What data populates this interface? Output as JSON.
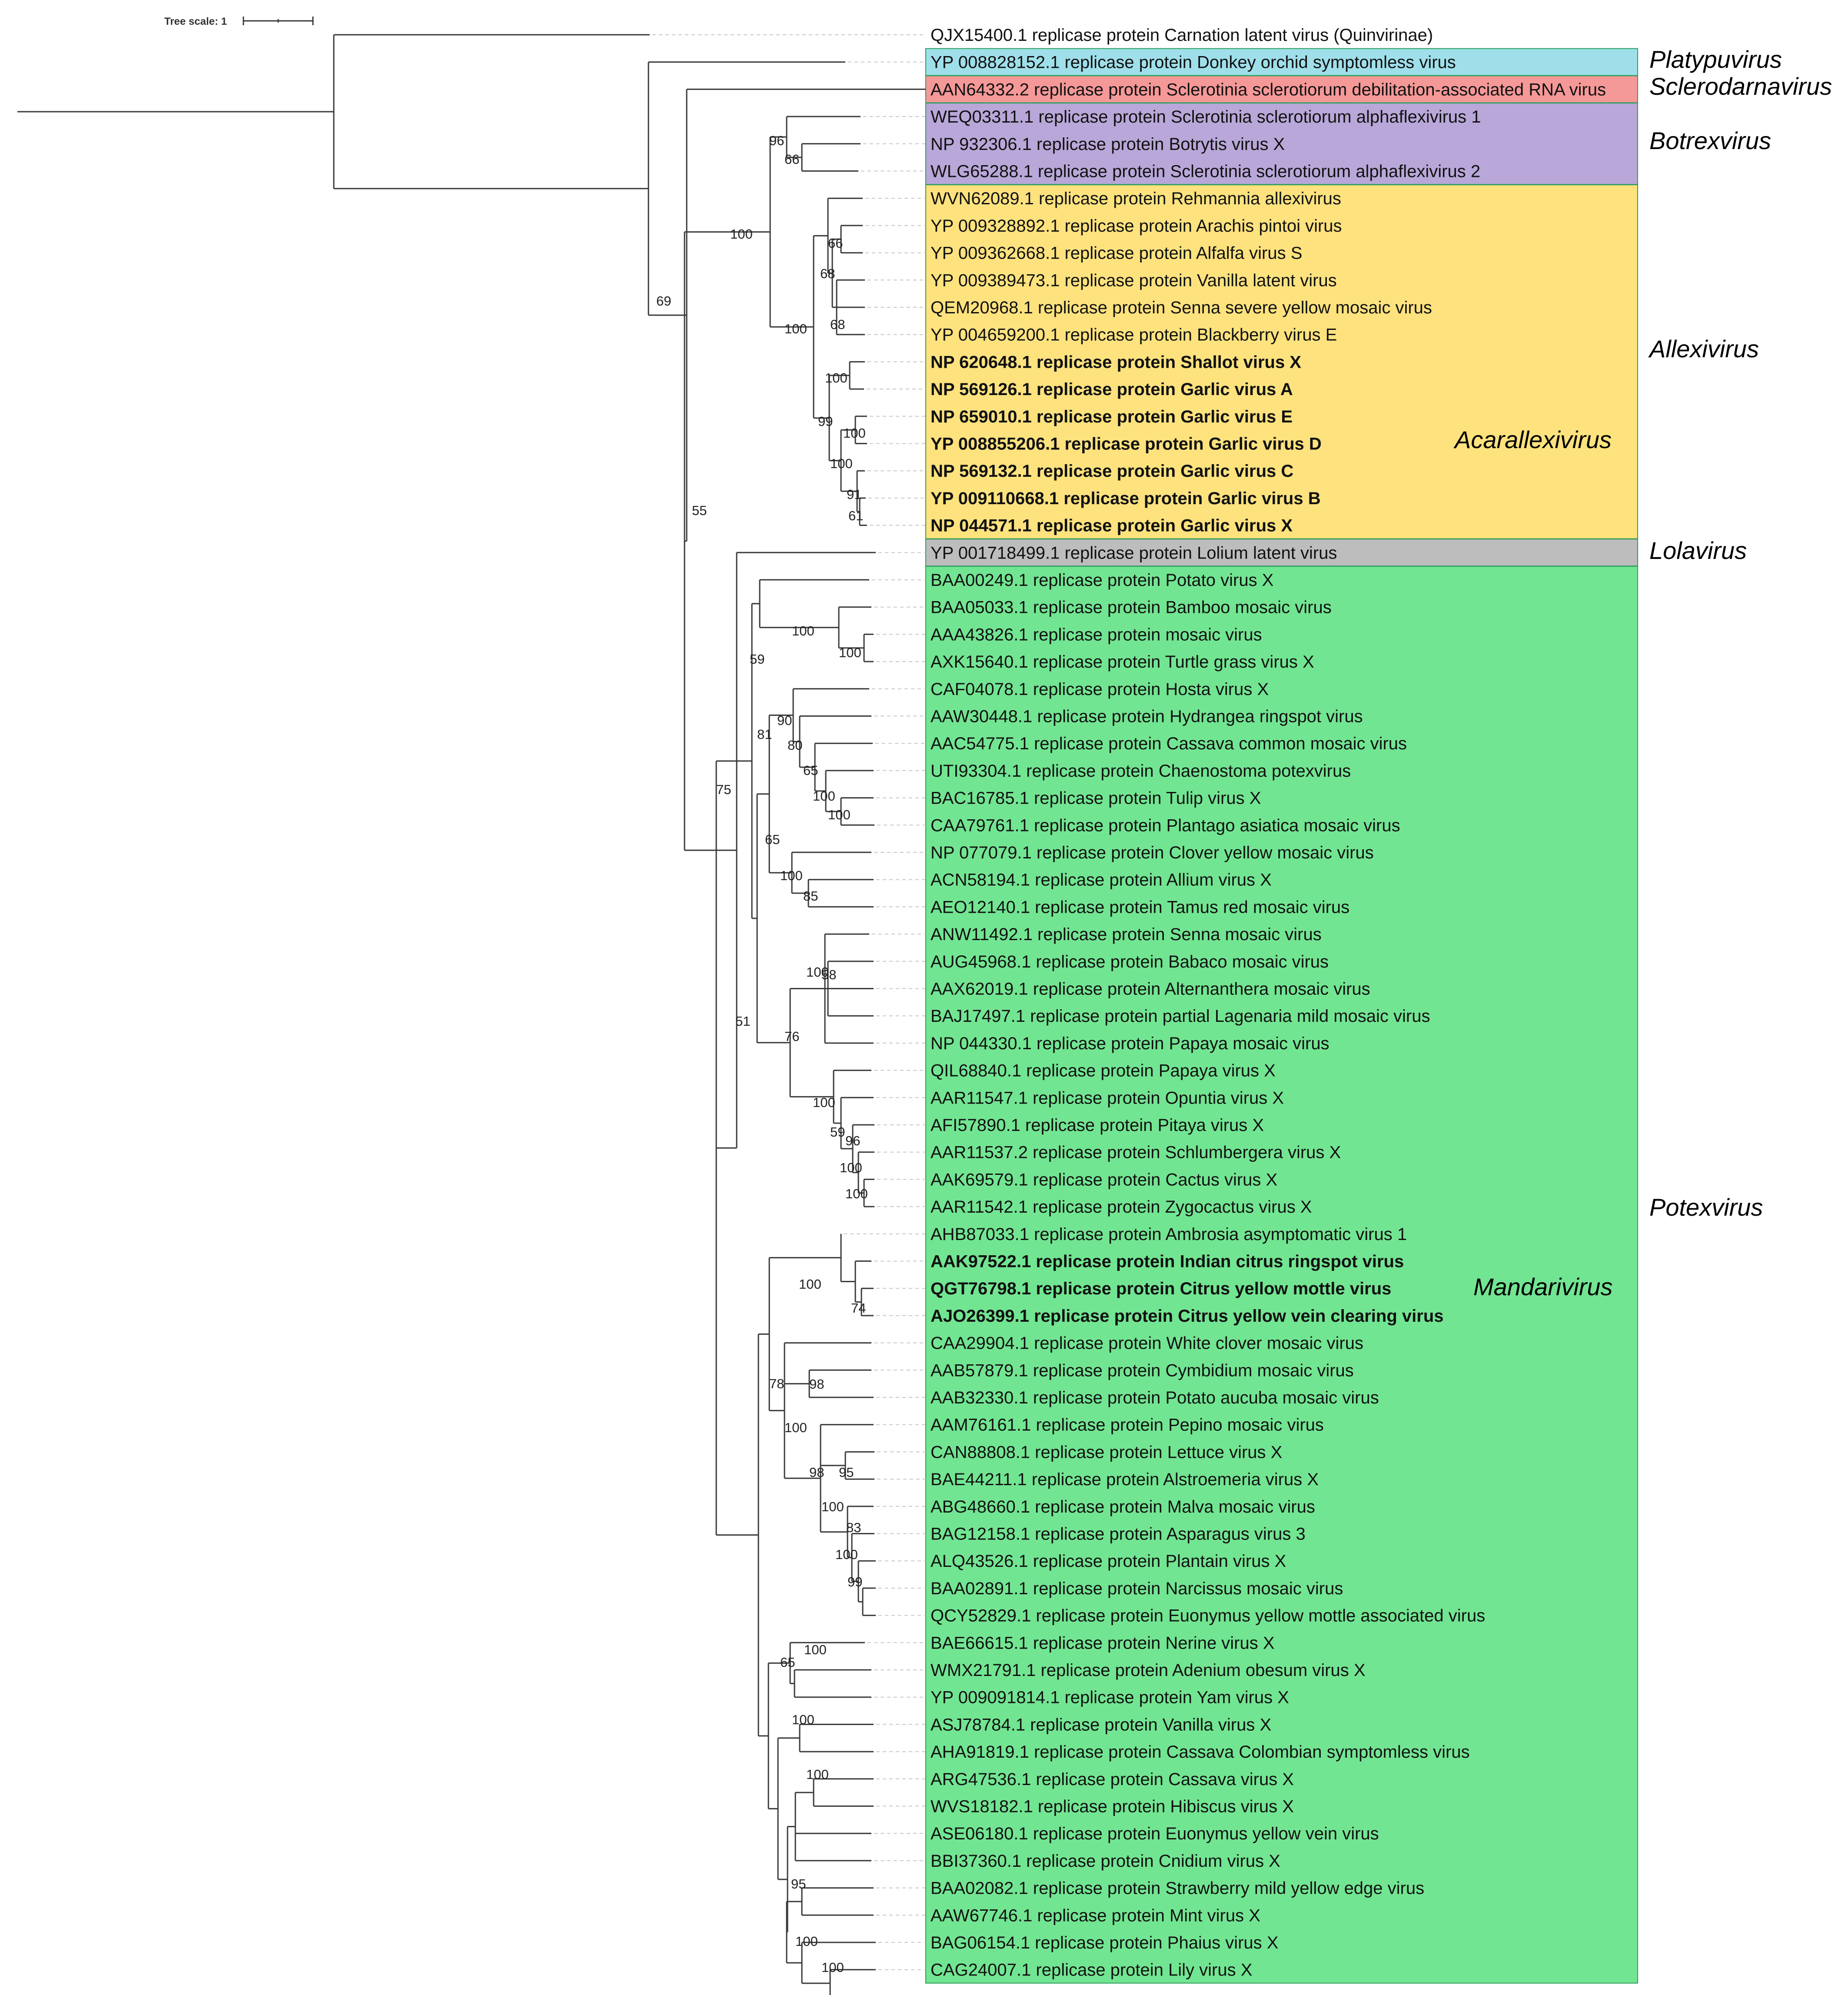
{
  "diagram": {
    "type": "phylogenetic_tree",
    "scale_label": "Tree scale: 1",
    "colors": {
      "Platypuvirus": "#9fdfea",
      "Sclerodarnavirus": "#f59898",
      "Botrexvirus": "#b8a7d8",
      "Allexivirus": "#fde27e",
      "Lolavirus": "#bdbdbd",
      "Potexvirus": "#72e592"
    },
    "genera": [
      "Platypuvirus",
      "Sclerodarnavirus",
      "Botrexvirus",
      "Allexivirus",
      "Acarallexivirus",
      "Lolavirus",
      "Potexvirus",
      "Mandarivirus"
    ],
    "leaves": [
      "QJX15400.1 replicase protein Carnation latent virus (Quinvirinae)",
      "YP 008828152.1 replicase protein Donkey orchid symptomless virus",
      "AAN64332.2 replicase protein Sclerotinia sclerotiorum debilitation-associated RNA virus",
      "WEQ03311.1 replicase protein Sclerotinia sclerotiorum alphaflexivirus 1",
      "NP 932306.1 replicase protein Botrytis virus X",
      "WLG65288.1 replicase protein Sclerotinia sclerotiorum alphaflexivirus 2",
      "WVN62089.1 replicase protein Rehmannia allexivirus",
      "YP 009328892.1 replicase protein Arachis pintoi virus",
      "YP 009362668.1 replicase protein Alfalfa virus S",
      "YP 009389473.1 replicase protein Vanilla latent virus",
      "QEM20968.1 replicase protein Senna severe yellow mosaic virus",
      "YP 004659200.1 replicase protein Blackberry virus E",
      "NP 620648.1 replicase protein Shallot virus X",
      "NP 569126.1 replicase protein Garlic virus A",
      "NP 659010.1 replicase protein Garlic virus E",
      "YP 008855206.1 replicase protein Garlic virus D",
      "NP 569132.1 replicase protein Garlic virus C",
      "YP 009110668.1 replicase protein Garlic virus B",
      "NP 044571.1 replicase protein Garlic virus X",
      "YP 001718499.1 replicase protein Lolium latent virus",
      "BAA00249.1 replicase protein Potato virus X",
      "BAA05033.1 replicase protein Bamboo mosaic virus",
      "AAA43826.1 replicase protein mosaic virus",
      "AXK15640.1 replicase protein Turtle grass virus X",
      "CAF04078.1 replicase protein Hosta virus X",
      "AAW30448.1 replicase protein Hydrangea ringspot virus",
      "AAC54775.1 replicase protein Cassava common mosaic virus",
      "UTI93304.1 replicase protein Chaenostoma potexvirus",
      "BAC16785.1 replicase protein Tulip virus X",
      "CAA79761.1 replicase protein Plantago asiatica mosaic virus",
      "NP 077079.1 replicase protein Clover yellow mosaic virus",
      "ACN58194.1 replicase protein Allium virus X",
      "AEO12140.1 replicase protein Tamus red mosaic virus",
      "ANW11492.1 replicase protein Senna mosaic virus",
      "AUG45968.1 replicase protein Babaco mosaic virus",
      "AAX62019.1 replicase protein Alternanthera mosaic virus",
      "BAJ17497.1 replicase protein partial Lagenaria mild mosaic virus",
      "NP 044330.1 replicase protein Papaya mosaic virus",
      "QIL68840.1 replicase protein Papaya virus X",
      "AAR11547.1 replicase protein Opuntia virus X",
      "AFI57890.1 replicase protein Pitaya virus X",
      "AAR11537.2 replicase protein Schlumbergera virus X",
      "AAK69579.1 replicase protein Cactus virus X",
      "AAR11542.1 replicase protein Zygocactus virus X",
      "AHB87033.1 replicase protein Ambrosia asymptomatic virus 1",
      "AAK97522.1 replicase protein Indian citrus ringspot virus",
      "QGT76798.1 replicase protein Citrus yellow mottle virus",
      "AJO26399.1 replicase protein Citrus yellow vein clearing virus",
      "CAA29904.1 replicase protein White clover mosaic virus",
      "AAB57879.1 replicase protein Cymbidium mosaic virus",
      "AAB32330.1 replicase protein Potato aucuba mosaic virus",
      "AAM76161.1 replicase protein Pepino mosaic virus",
      "CAN88808.1 replicase protein Lettuce virus X",
      "BAE44211.1 replicase protein Alstroemeria virus X",
      "ABG48660.1 replicase protein Malva mosaic virus",
      "BAG12158.1 replicase protein Asparagus virus 3",
      "ALQ43526.1 replicase protein Plantain virus X",
      "BAA02891.1 replicase protein Narcissus mosaic virus",
      "QCY52829.1 replicase protein Euonymus yellow mottle associated virus",
      "BAE66615.1 replicase protein Nerine virus X",
      "WMX21791.1 replicase protein Adenium obesum virus X",
      "YP 009091814.1 replicase protein Yam virus X",
      "ASJ78784.1 replicase protein Vanilla virus X",
      "AHA91819.1 replicase protein Cassava Colombian symptomless virus",
      "ARG47536.1 replicase protein Cassava virus X",
      "WVS18182.1 replicase protein Hibiscus virus X",
      "ASE06180.1 replicase protein Euonymus yellow vein virus",
      "BBI37360.1 replicase protein Cnidium virus X",
      "BAA02082.1 replicase protein Strawberry mild yellow edge virus",
      "AAW67746.1 replicase protein Mint virus X",
      "BAG06154.1 replicase protein Phaius virus X",
      "CAG24007.1 replicase protein Lily virus X"
    ],
    "bold_leaves": [
      12,
      13,
      14,
      15,
      16,
      17,
      18,
      45,
      46,
      47
    ],
    "bootstrap": [
      "96",
      "66",
      "100",
      "69",
      "66",
      "68",
      "68",
      "100",
      "100",
      "99",
      "100",
      "100",
      "91",
      "61",
      "55",
      "59",
      "100",
      "100",
      "90",
      "81",
      "80",
      "65",
      "100",
      "100",
      "65",
      "100",
      "85",
      "100",
      "58",
      "76",
      "100",
      "59",
      "96",
      "100",
      "100",
      "51",
      "75",
      "100",
      "74",
      "78",
      "98",
      "100",
      "98",
      "95",
      "100",
      "83",
      "100",
      "99",
      "100",
      "65",
      "100",
      "100",
      "95",
      "100",
      "100"
    ]
  }
}
